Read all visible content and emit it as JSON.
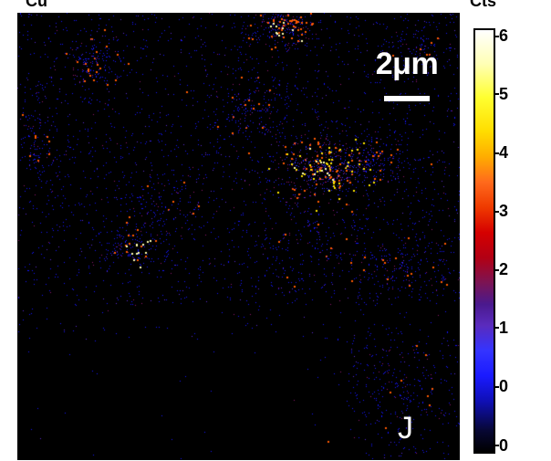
{
  "figure": {
    "top_label": "Cu",
    "scale_bar_label": "2μm",
    "panel_letter": "J",
    "colorbar": {
      "title": "Cts",
      "ticks": [
        "0",
        "0",
        "1",
        "2",
        "3",
        "4",
        "5",
        "6"
      ]
    }
  }
}
